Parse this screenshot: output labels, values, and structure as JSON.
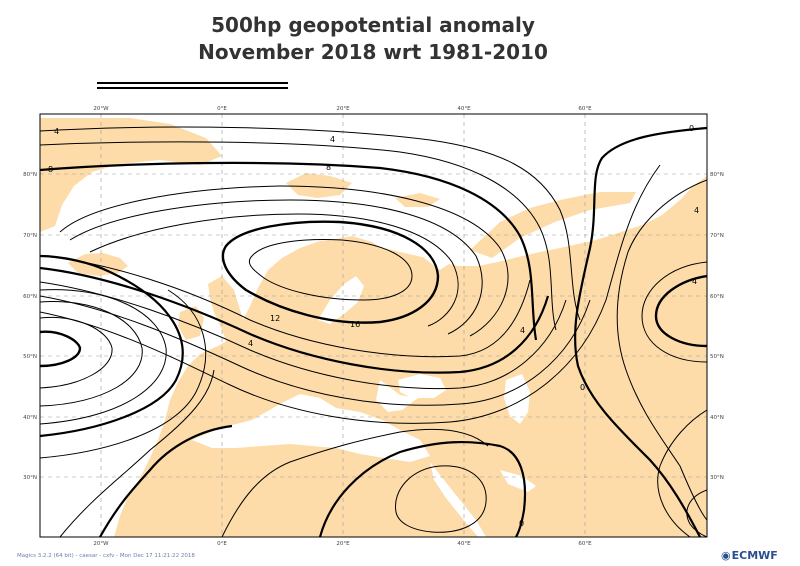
{
  "title": {
    "line1": "500hp geopotential anomaly",
    "line2": "November 2018 wrt  1981-2010"
  },
  "map": {
    "lon_labels": [
      "20°W",
      "0°E",
      "20°E",
      "40°E",
      "60°E"
    ],
    "lat_labels": [
      "80°N",
      "70°N",
      "60°N",
      "50°N",
      "40°N",
      "30°N"
    ],
    "land_color": "#fddcaa",
    "sea_color": "#ffffff",
    "contour_labels": [
      "4",
      "4",
      "8",
      "12",
      "16",
      "4",
      "8",
      "4",
      "4",
      "0",
      "0",
      "0",
      "4"
    ]
  },
  "footer": {
    "credit": "Magics 3.2.2 (64 bit) - caesar - cxfv - Mon Dec 17 11:21:22 2018",
    "logo": "ECMWF"
  }
}
